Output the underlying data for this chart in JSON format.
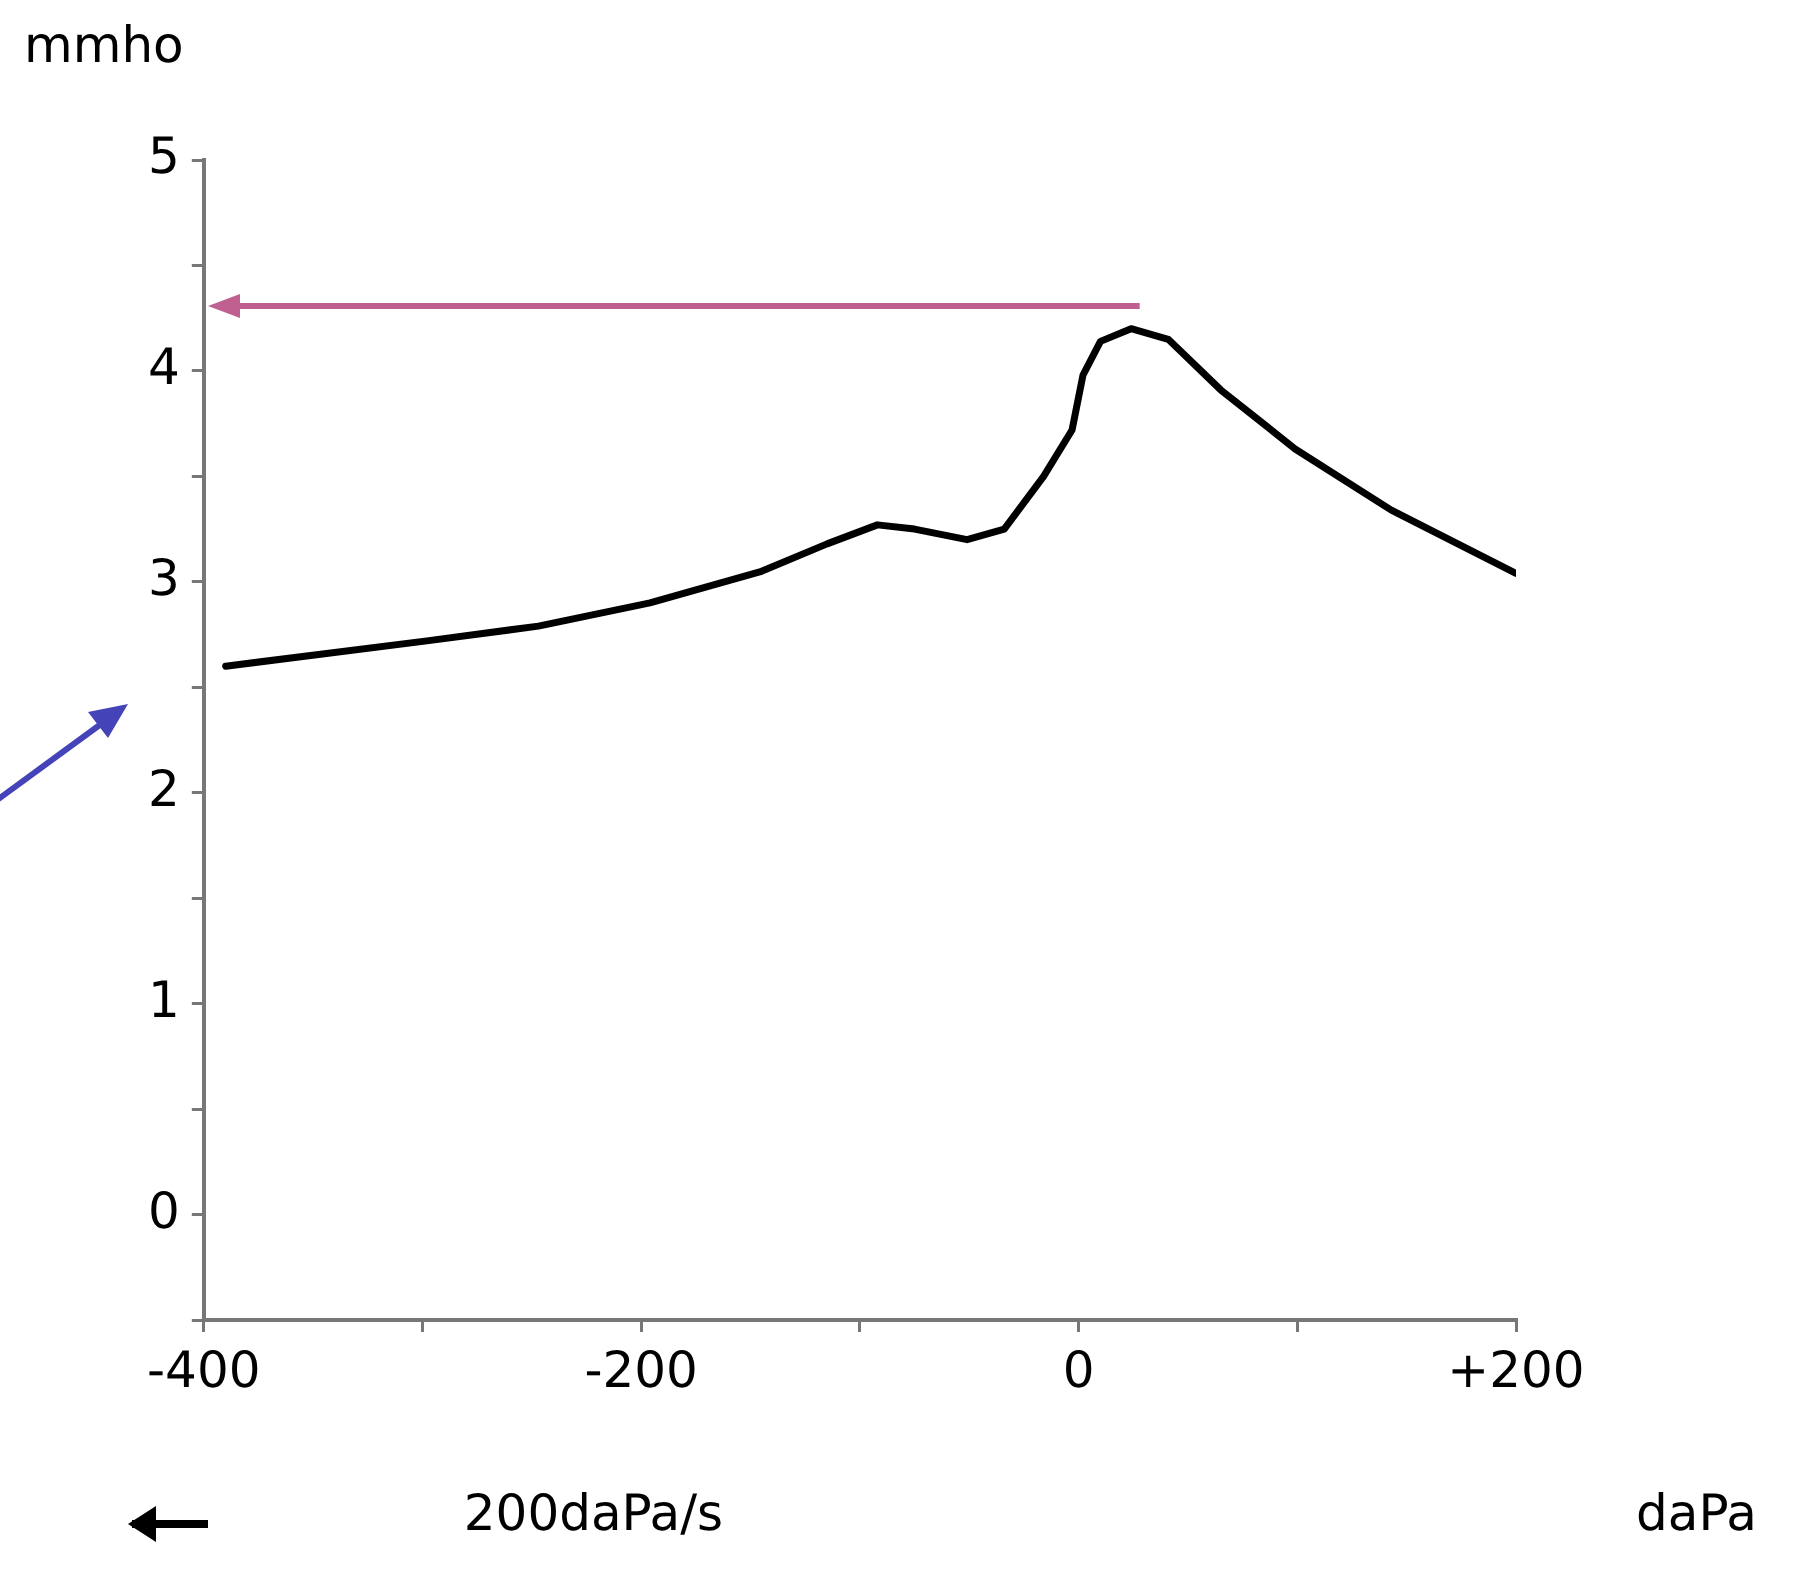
{
  "chart_data": {
    "type": "line",
    "xlabel": "daPa",
    "ylabel": "mmho",
    "annotations": [
      "200daPa/s"
    ],
    "x": [
      -390,
      -298,
      -247,
      -196,
      -145,
      -115,
      -92,
      -75,
      -51,
      -34,
      -16,
      -3,
      2,
      10,
      24,
      41,
      65,
      99,
      143,
      200
    ],
    "series": [
      {
        "color": "#000000",
        "values": [
          2.6,
          2.72,
          2.79,
          2.9,
          3.05,
          3.18,
          3.27,
          3.25,
          3.2,
          3.25,
          3.5,
          3.72,
          3.98,
          4.14,
          4.2,
          4.15,
          3.91,
          3.63,
          3.34,
          3.04
        ]
      }
    ],
    "xlim": [
      -400,
      200
    ],
    "xticks": [
      -400,
      {
        "value": -300,
        "label": null
      },
      -200,
      {
        "value": -100,
        "label": null
      },
      0,
      {
        "value": 100,
        "label": null
      },
      {
        "value": 200,
        "label": "+200"
      }
    ],
    "ylim": [
      -0.5,
      5
    ],
    "yticks": [
      {
        "value": -0.5,
        "label": null
      },
      0,
      {
        "value": 0.5,
        "label": null
      },
      1,
      {
        "value": 1.5,
        "label": null
      },
      2,
      {
        "value": 2.5,
        "label": null
      },
      3,
      {
        "value": 3.5,
        "label": null
      },
      4,
      {
        "value": 4.5,
        "label": null
      },
      5
    ],
    "grid": false,
    "legend": false,
    "marker": "none",
    "line_style": "solid"
  }
}
